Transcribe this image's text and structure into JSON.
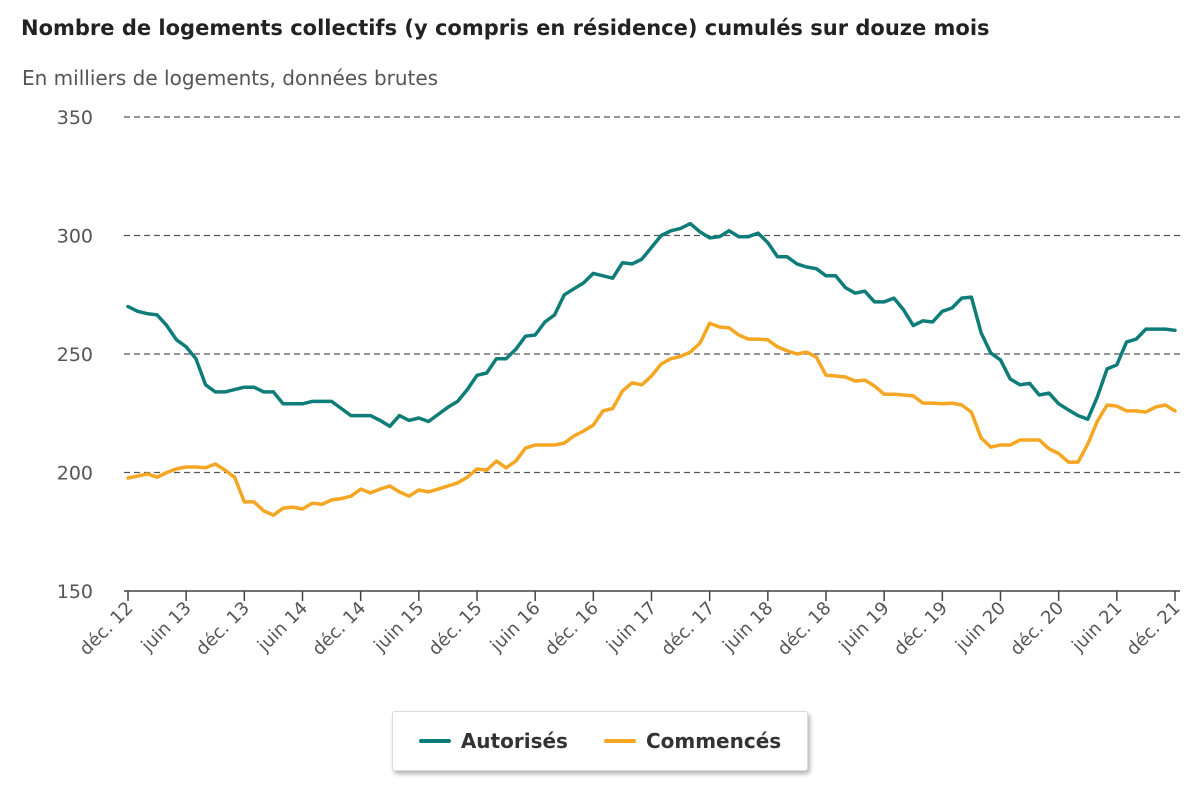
{
  "chart_data": {
    "type": "line",
    "title": "Nombre de logements collectifs (y compris en résidence) cumulés sur douze mois",
    "subtitle": "En milliers de logements, données brutes",
    "ylim": [
      150,
      350
    ],
    "yticks": [
      150,
      200,
      250,
      300,
      350
    ],
    "x_start": "déc. 12",
    "x_end": "déc. 21",
    "x_frequency": "monthly",
    "x_ticks": [
      "déc. 12",
      "juin 13",
      "déc. 13",
      "juin 14",
      "déc. 14",
      "juin 15",
      "déc. 15",
      "juin 16",
      "déc. 16",
      "juin 17",
      "déc. 17",
      "juin 18",
      "déc. 18",
      "juin 19",
      "déc. 19",
      "juin 20",
      "déc. 20",
      "juin 21",
      "déc. 21"
    ],
    "grid": true,
    "legend_position": "bottom-center",
    "series": [
      {
        "name": "Autorisés",
        "color": "#0e7c78",
        "values": [
          270,
          268,
          267,
          266.5,
          262,
          256,
          253,
          248,
          237,
          234,
          234,
          235,
          236,
          236,
          234,
          234,
          229,
          229,
          229,
          230,
          230,
          230,
          227,
          224,
          224,
          224,
          222,
          219.5,
          224,
          222,
          223,
          221.5,
          224.5,
          227.5,
          230,
          235,
          241,
          242,
          248,
          248,
          252,
          257.5,
          258,
          263.5,
          266.5,
          275,
          277.5,
          280,
          284,
          283,
          282,
          288.5,
          288,
          290,
          295,
          300,
          302,
          303,
          305,
          301.5,
          299,
          299.5,
          302,
          299.5,
          299.5,
          301,
          297,
          291,
          291,
          288,
          286.7,
          286,
          283,
          283,
          278,
          275.7,
          276.5,
          272,
          272,
          273.6,
          268.6,
          262,
          264,
          263.5,
          268,
          269.4,
          273.6,
          274,
          259,
          250.4,
          247.5,
          239.5,
          237,
          237.6,
          232.7,
          233.5,
          229,
          226.4,
          224,
          222.5,
          232,
          243.7,
          245.4,
          255,
          256.3,
          260.5,
          260.5,
          260.5,
          260
        ]
      },
      {
        "name": "Commencés",
        "color": "#f5a623",
        "values": [
          197.7,
          198.5,
          199.4,
          198,
          200,
          201.5,
          202.3,
          202.3,
          202,
          203.6,
          201,
          198,
          187.6,
          187.6,
          183.8,
          182,
          185,
          185.4,
          184.6,
          187,
          186.6,
          188.4,
          189,
          190,
          193,
          191.4,
          193,
          194.3,
          191.8,
          190,
          192.6,
          191.8,
          193,
          194.3,
          195.6,
          198,
          201.5,
          201,
          204.8,
          202,
          204.8,
          210.3,
          211.6,
          211.6,
          211.6,
          212.4,
          215.4,
          217.5,
          220,
          226,
          227,
          234.4,
          237.8,
          237,
          240.7,
          245.8,
          248,
          249,
          250.8,
          254.6,
          263,
          261.4,
          261,
          258,
          256.3,
          256.3,
          256,
          253,
          251.3,
          250,
          250.8,
          248.7,
          241,
          240.7,
          240.3,
          238.6,
          239,
          236.5,
          233,
          233,
          232.7,
          232.3,
          229.3,
          229.3,
          229,
          229.3,
          228.5,
          225.5,
          214.6,
          210.7,
          211.6,
          211.6,
          213.7,
          213.7,
          213.7,
          210,
          208,
          204.4,
          204.4,
          212,
          221.7,
          228.5,
          228,
          226,
          226,
          225.5,
          227.6,
          228.5,
          226
        ]
      }
    ]
  }
}
